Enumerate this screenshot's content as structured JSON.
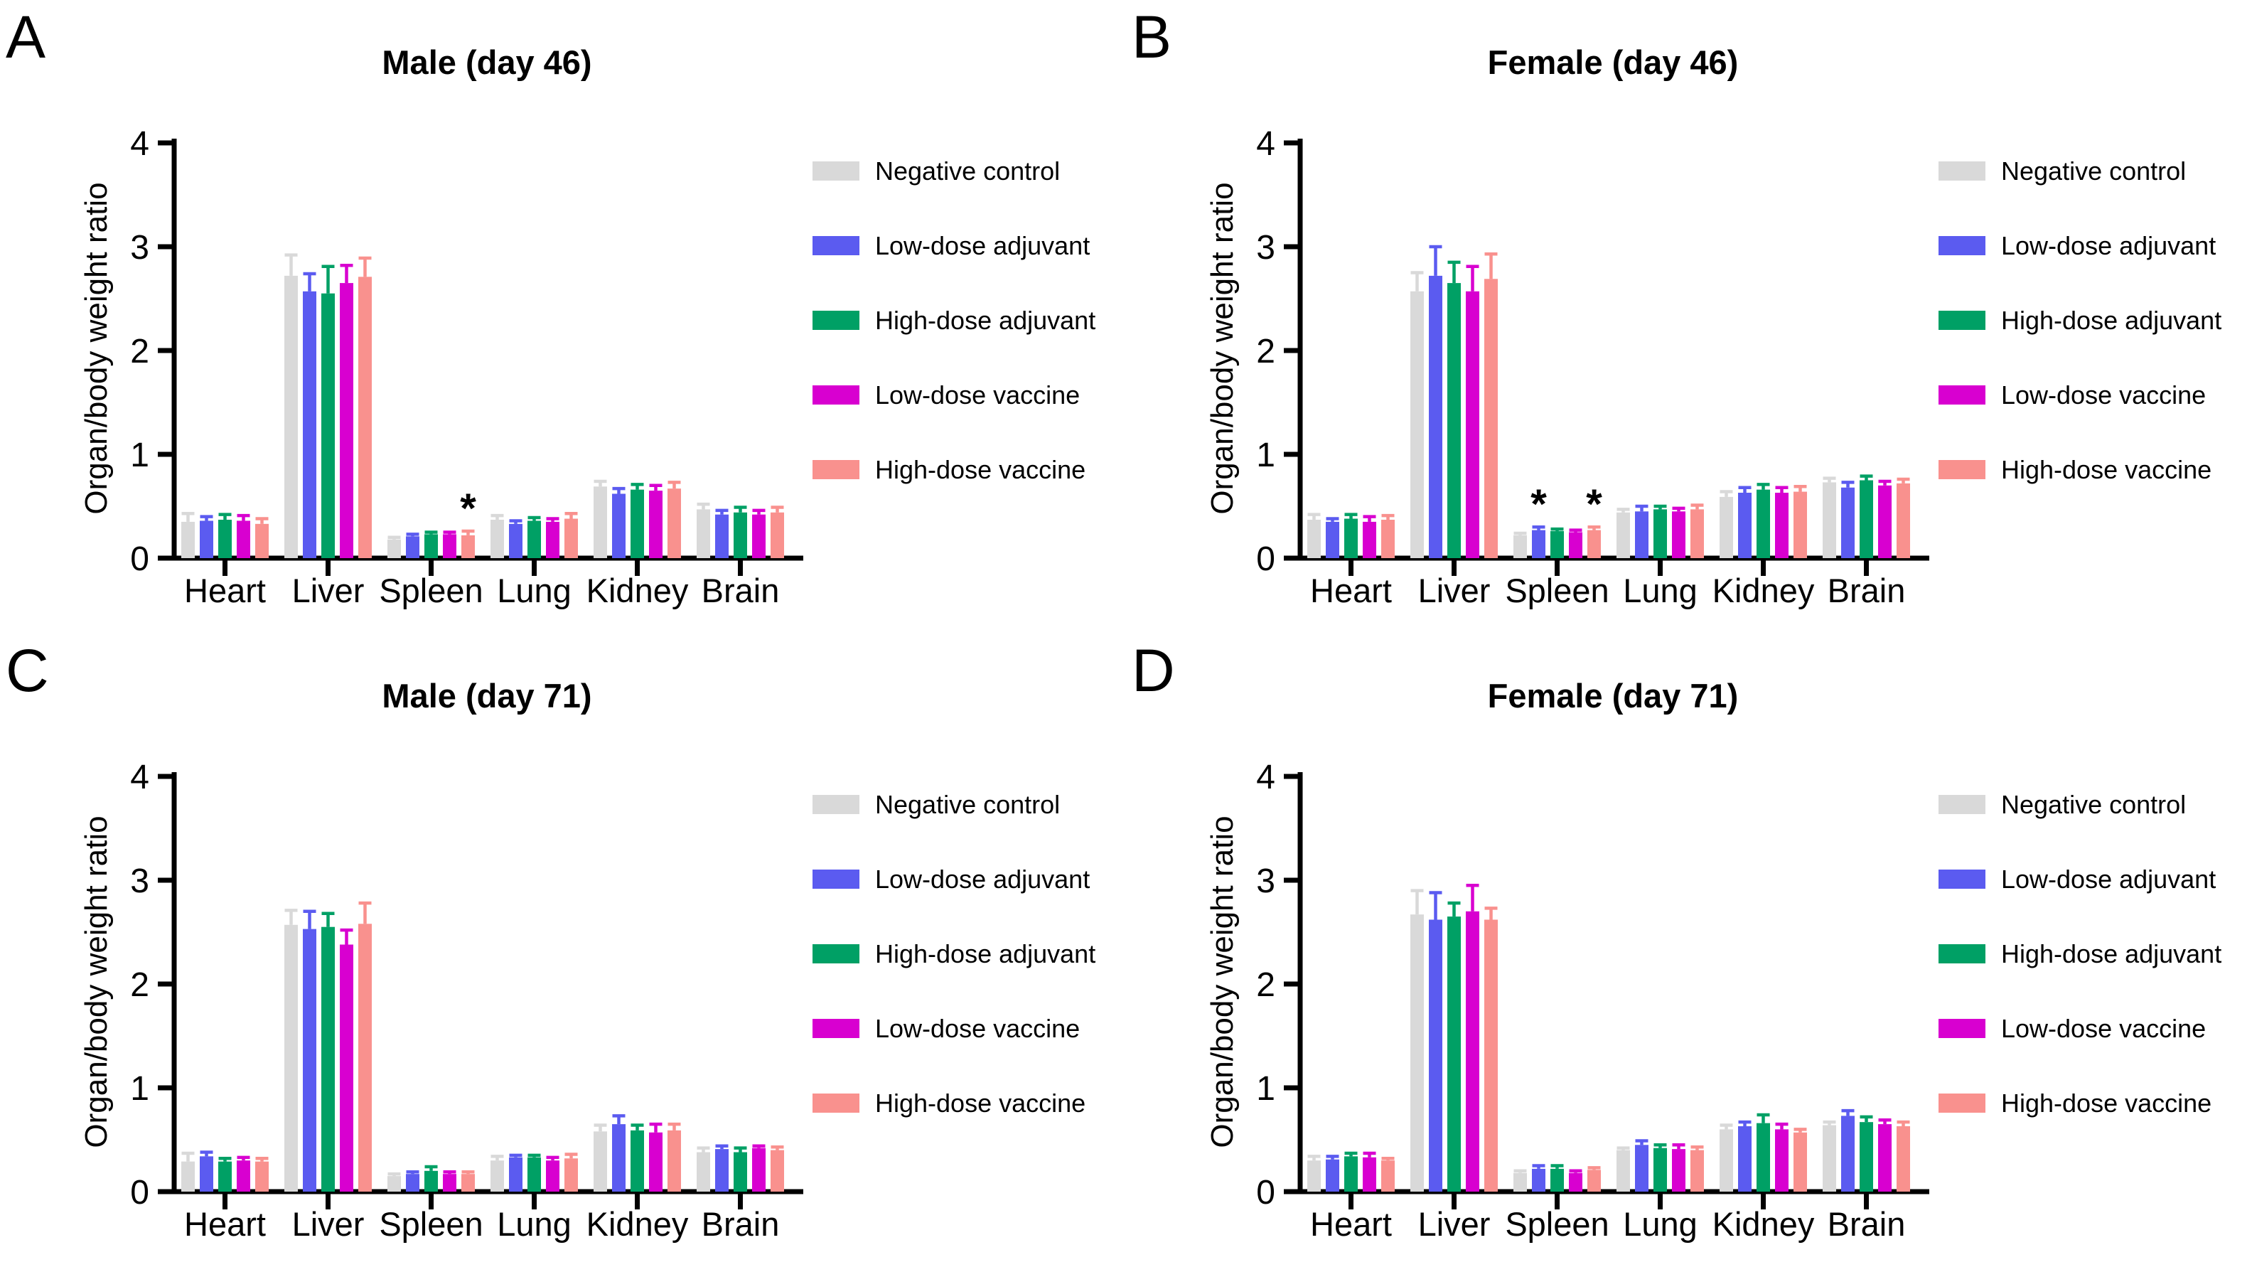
{
  "figure": {
    "background_color": "#FFFFFF",
    "axis_color": "#000000"
  },
  "chart_data": [
    {
      "type": "bar",
      "panel_letter": "A",
      "title": "Male (day 46)",
      "ylabel": "Organ/body weight ratio",
      "ylim": [
        0,
        4
      ],
      "yticks": [
        0,
        1,
        2,
        3,
        4
      ],
      "legend_position": "right",
      "categories": [
        "Heart",
        "Liver",
        "Spleen",
        "Lung",
        "Kidney",
        "Brain"
      ],
      "series": [
        {
          "name": "Negative control",
          "color": "#D9D9D9",
          "values": [
            0.35,
            2.72,
            0.18,
            0.37,
            0.69,
            0.47
          ],
          "errors": [
            0.08,
            0.2,
            0.02,
            0.04,
            0.05,
            0.05
          ]
        },
        {
          "name": "Low-dose adjuvant",
          "color": "#5B5BF0",
          "values": [
            0.36,
            2.57,
            0.21,
            0.33,
            0.62,
            0.42
          ],
          "errors": [
            0.04,
            0.17,
            0.02,
            0.03,
            0.05,
            0.04
          ]
        },
        {
          "name": "High-dose adjuvant",
          "color": "#00A065",
          "values": [
            0.37,
            2.55,
            0.23,
            0.36,
            0.66,
            0.44
          ],
          "errors": [
            0.05,
            0.26,
            0.02,
            0.03,
            0.05,
            0.05
          ]
        },
        {
          "name": "Low-dose vaccine",
          "color": "#D800D0",
          "values": [
            0.36,
            2.65,
            0.23,
            0.35,
            0.65,
            0.42
          ],
          "errors": [
            0.05,
            0.17,
            0.02,
            0.03,
            0.05,
            0.04
          ]
        },
        {
          "name": "High-dose vaccine",
          "color": "#F9918E",
          "values": [
            0.33,
            2.71,
            0.22,
            0.38,
            0.67,
            0.44
          ],
          "errors": [
            0.05,
            0.18,
            0.04,
            0.05,
            0.06,
            0.05
          ]
        }
      ],
      "significance": [
        {
          "category": "Spleen",
          "series": "High-dose vaccine",
          "label": "*"
        }
      ]
    },
    {
      "type": "bar",
      "panel_letter": "B",
      "title": "Female (day 46)",
      "ylabel": "Organ/body weight ratio",
      "ylim": [
        0,
        4
      ],
      "yticks": [
        0,
        1,
        2,
        3,
        4
      ],
      "legend_position": "right",
      "categories": [
        "Heart",
        "Liver",
        "Spleen",
        "Lung",
        "Kidney",
        "Brain"
      ],
      "series": [
        {
          "name": "Negative control",
          "color": "#D9D9D9",
          "values": [
            0.37,
            2.57,
            0.22,
            0.44,
            0.59,
            0.73
          ],
          "errors": [
            0.05,
            0.18,
            0.02,
            0.03,
            0.05,
            0.04
          ]
        },
        {
          "name": "Low-dose adjuvant",
          "color": "#5B5BF0",
          "values": [
            0.35,
            2.72,
            0.27,
            0.45,
            0.63,
            0.68
          ],
          "errors": [
            0.03,
            0.28,
            0.03,
            0.05,
            0.05,
            0.05
          ]
        },
        {
          "name": "High-dose adjuvant",
          "color": "#00A065",
          "values": [
            0.38,
            2.65,
            0.26,
            0.47,
            0.66,
            0.75
          ],
          "errors": [
            0.04,
            0.2,
            0.02,
            0.03,
            0.05,
            0.04
          ]
        },
        {
          "name": "Low-dose vaccine",
          "color": "#D800D0",
          "values": [
            0.35,
            2.57,
            0.25,
            0.45,
            0.63,
            0.7
          ],
          "errors": [
            0.05,
            0.24,
            0.02,
            0.03,
            0.05,
            0.04
          ]
        },
        {
          "name": "High-dose vaccine",
          "color": "#F9918E",
          "values": [
            0.37,
            2.69,
            0.27,
            0.47,
            0.64,
            0.72
          ],
          "errors": [
            0.04,
            0.24,
            0.03,
            0.04,
            0.05,
            0.04
          ]
        }
      ],
      "significance": [
        {
          "category": "Spleen",
          "series": "Low-dose adjuvant",
          "label": "*"
        },
        {
          "category": "Spleen",
          "series": "High-dose vaccine",
          "label": "*"
        }
      ]
    },
    {
      "type": "bar",
      "panel_letter": "C",
      "title": "Male (day 71)",
      "ylabel": "Organ/body weight ratio",
      "ylim": [
        0,
        4
      ],
      "yticks": [
        0,
        1,
        2,
        3,
        4
      ],
      "legend_position": "right",
      "categories": [
        "Heart",
        "Liver",
        "Spleen",
        "Lung",
        "Kidney",
        "Brain"
      ],
      "series": [
        {
          "name": "Negative control",
          "color": "#D9D9D9",
          "values": [
            0.29,
            2.57,
            0.15,
            0.3,
            0.58,
            0.38
          ],
          "errors": [
            0.08,
            0.14,
            0.02,
            0.04,
            0.06,
            0.04
          ]
        },
        {
          "name": "Low-dose adjuvant",
          "color": "#5B5BF0",
          "values": [
            0.34,
            2.53,
            0.17,
            0.33,
            0.65,
            0.41
          ],
          "errors": [
            0.04,
            0.17,
            0.02,
            0.02,
            0.08,
            0.03
          ]
        },
        {
          "name": "High-dose adjuvant",
          "color": "#00A065",
          "values": [
            0.29,
            2.55,
            0.2,
            0.33,
            0.59,
            0.38
          ],
          "errors": [
            0.03,
            0.13,
            0.04,
            0.02,
            0.05,
            0.04
          ]
        },
        {
          "name": "Low-dose vaccine",
          "color": "#D800D0",
          "values": [
            0.3,
            2.38,
            0.17,
            0.3,
            0.57,
            0.42
          ],
          "errors": [
            0.03,
            0.14,
            0.02,
            0.03,
            0.08,
            0.02
          ]
        },
        {
          "name": "High-dose vaccine",
          "color": "#F9918E",
          "values": [
            0.29,
            2.58,
            0.17,
            0.32,
            0.59,
            0.4
          ],
          "errors": [
            0.03,
            0.2,
            0.02,
            0.04,
            0.06,
            0.03
          ]
        }
      ],
      "significance": []
    },
    {
      "type": "bar",
      "panel_letter": "D",
      "title": "Female (day 71)",
      "ylabel": "Organ/body weight ratio",
      "ylim": [
        0,
        4
      ],
      "yticks": [
        0,
        1,
        2,
        3,
        4
      ],
      "legend_position": "right",
      "categories": [
        "Heart",
        "Liver",
        "Spleen",
        "Lung",
        "Kidney",
        "Brain"
      ],
      "series": [
        {
          "name": "Negative control",
          "color": "#D9D9D9",
          "values": [
            0.3,
            2.67,
            0.18,
            0.4,
            0.6,
            0.64
          ],
          "errors": [
            0.04,
            0.23,
            0.02,
            0.02,
            0.04,
            0.03
          ]
        },
        {
          "name": "Low-dose adjuvant",
          "color": "#5B5BF0",
          "values": [
            0.31,
            2.62,
            0.22,
            0.45,
            0.63,
            0.73
          ],
          "errors": [
            0.03,
            0.26,
            0.03,
            0.04,
            0.04,
            0.05
          ]
        },
        {
          "name": "High-dose adjuvant",
          "color": "#00A065",
          "values": [
            0.34,
            2.65,
            0.22,
            0.42,
            0.66,
            0.67
          ],
          "errors": [
            0.03,
            0.13,
            0.03,
            0.03,
            0.08,
            0.05
          ]
        },
        {
          "name": "Low-dose vaccine",
          "color": "#D800D0",
          "values": [
            0.33,
            2.7,
            0.18,
            0.41,
            0.6,
            0.65
          ],
          "errors": [
            0.04,
            0.25,
            0.02,
            0.04,
            0.05,
            0.04
          ]
        },
        {
          "name": "High-dose vaccine",
          "color": "#F9918E",
          "values": [
            0.3,
            2.62,
            0.21,
            0.4,
            0.57,
            0.63
          ],
          "errors": [
            0.02,
            0.11,
            0.02,
            0.03,
            0.03,
            0.04
          ]
        }
      ],
      "significance": []
    }
  ]
}
